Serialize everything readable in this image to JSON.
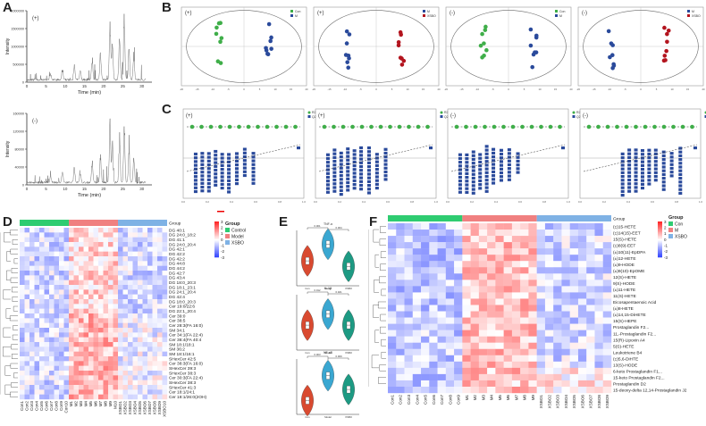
{
  "panels": {
    "A": "A",
    "B": "B",
    "C": "C",
    "D": "D",
    "E": "E",
    "F": "F"
  },
  "panelA": {
    "xlabel": "Time (min)",
    "ylabel": "Intensity",
    "top": {
      "mode": "(+)",
      "yticks": [
        "0",
        "500000",
        "1000000",
        "1500000",
        "2000000"
      ],
      "xticks": [
        "0",
        "5",
        "10",
        "15",
        "20",
        "25",
        "30"
      ]
    },
    "bottom": {
      "mode": "(-)",
      "yticks": [
        "0",
        "40000",
        "80000",
        "120000",
        "160000"
      ],
      "xticks": [
        "0",
        "5",
        "10",
        "15",
        "20",
        "25",
        "30"
      ]
    }
  },
  "panelB": {
    "plots": [
      {
        "mode": "(+)",
        "legend": [
          "Con",
          "M"
        ],
        "colors": [
          "#3fae49",
          "#2a4a9b"
        ]
      },
      {
        "mode": "(+)",
        "legend": [
          "M",
          "XSBO"
        ],
        "colors": [
          "#2a4a9b",
          "#b3141e"
        ]
      },
      {
        "mode": "(-)",
        "legend": [
          "Con",
          "M"
        ],
        "colors": [
          "#3fae49",
          "#2a4a9b"
        ]
      },
      {
        "mode": "(-)",
        "legend": [
          "M",
          "XSBO"
        ],
        "colors": [
          "#2a4a9b",
          "#b3141e"
        ]
      }
    ]
  },
  "panelC": {
    "plots": [
      {
        "mode": "(+)",
        "legend": [
          "R2",
          "Q2"
        ]
      },
      {
        "mode": "(+)",
        "legend": [
          "R2",
          "Q2"
        ]
      },
      {
        "mode": "(-)",
        "legend": [
          "R2",
          "Q2"
        ]
      },
      {
        "mode": "(-)",
        "legend": [
          "R2",
          "Q2"
        ]
      }
    ]
  },
  "panelD": {
    "legend_title": "Group",
    "groups": [
      {
        "label": "Control",
        "color": "#2ecc71"
      },
      {
        "label": "Model",
        "color": "#f08080"
      },
      {
        "label": "XSBO",
        "color": "#7fb2e5"
      }
    ],
    "scale": [
      "3",
      "2",
      "1",
      "0",
      "-1",
      "-2",
      "-3"
    ],
    "group_row_label": "Group",
    "rows": [
      "DG 40:1",
      "DG 24:0_18:2",
      "DG 41:1",
      "DG 24:0_20:4",
      "DG 42:1",
      "DG 42:2",
      "DG 42:2",
      "DG 44:8",
      "DG 44:2",
      "DG 42:7",
      "DG 43:4",
      "DG 18:0_20:3",
      "DG 18:1_23:1",
      "DG 24:1_20:4",
      "DG 42:4",
      "DG 18:0_20:3",
      "Cer 19:0/22:6",
      "DG 22:1_20:4",
      "Cer 39:0",
      "Cer 38:5",
      "Cer 28:3(FA 16:0)",
      "SM 34:1",
      "Cer 34:1(FA 22:4)",
      "Cer 38:4(FA 40:4",
      "SM 18:1/18:1",
      "SM 36:2",
      "SM 18:1/16:1",
      "SHexCer 42:5",
      "Cer 38:3(FA 16:0)",
      "SHexCer 39:3",
      "SHexCer 38:3",
      "Cer 30:3(FA 22:4)",
      "SHexCer 38:3",
      "SHexCer 41:3",
      "Cer 18:1/24:1",
      "Cer 18:1/26:0(2OH)"
    ],
    "cols": [
      "Con1",
      "Con2",
      "Con3",
      "Con4",
      "Con5",
      "Con6",
      "Con7",
      "Con8",
      "Con9",
      "Con10",
      "M1",
      "M2",
      "M3",
      "M4",
      "M5",
      "M6",
      "M7",
      "M8",
      "M9",
      "M10",
      "XSBO1",
      "XSBO2",
      "XSBO3",
      "XSBO4",
      "XSBO5",
      "XSBO6",
      "XSBO7",
      "XSBO8",
      "XSBO9",
      "XSBO10"
    ]
  },
  "panelE": {
    "plots": [
      {
        "title": "TNF-α",
        "pvals": [
          "0.001",
          "0.004"
        ]
      },
      {
        "title": "IL-1β",
        "pvals": [
          "0.012",
          "0.021"
        ]
      },
      {
        "title": "NF-κB",
        "pvals": [
          "0.003",
          "0.009"
        ]
      }
    ],
    "xticks": [
      "Con",
      "Model",
      "XSBO"
    ],
    "colors": [
      "#d94a30",
      "#3aa7d1",
      "#1d9a83"
    ]
  },
  "panelF": {
    "legend_title": "Group",
    "groups": [
      {
        "label": "Con",
        "color": "#2ecc71"
      },
      {
        "label": "M",
        "color": "#f08080"
      },
      {
        "label": "XSBO",
        "color": "#7fb2e5"
      }
    ],
    "scale": [
      "3",
      "2",
      "1",
      "0",
      "-1",
      "-2",
      "-3"
    ],
    "group_row_label": "Group",
    "rows": [
      "(±)15-HETE",
      "(±)14(15)-EET",
      "15(S)-HETE",
      "(±)8(9)-EET",
      "(±)10(11)-EpDPA",
      "(±)12-HETE",
      "(±)9-HODE",
      "(±)9(10)-EpOME",
      "12(S)-HETE",
      "9(S)-HODE",
      "(±)11-HETE",
      "11(S)-HETE",
      "Eicosapentaenoic Acid",
      "(±)8-HETE",
      "(±)14,15-DiHETE",
      "15(S)-HEPE",
      "Prostaglandin F2...",
      "11,-Prostaglandin F2...",
      "15(R)-Lipoxin A4",
      "5(S)-HETE",
      "Leukotriene B4",
      "(±)5,6-DiHTE",
      "13(S)-HODE",
      "6-keto Prostaglandin F1...",
      "15-keto Prostaglandin F2...",
      "Prostaglandin D2",
      "15-deoxy-delta 12,14-Prostaglandin J2"
    ],
    "cols": [
      "Con1",
      "Con2",
      "Con3",
      "Con4",
      "Con5",
      "Con6",
      "Con7",
      "Con8",
      "Con9",
      "M1",
      "M2",
      "M3",
      "M4",
      "M5",
      "M6",
      "M7",
      "M8",
      "M9",
      "XSBO1",
      "XSBO2",
      "XSBO3",
      "XSBO4",
      "XSBO5",
      "XSBO6",
      "XSBO7",
      "XSBO8",
      "XSBO9"
    ]
  }
}
